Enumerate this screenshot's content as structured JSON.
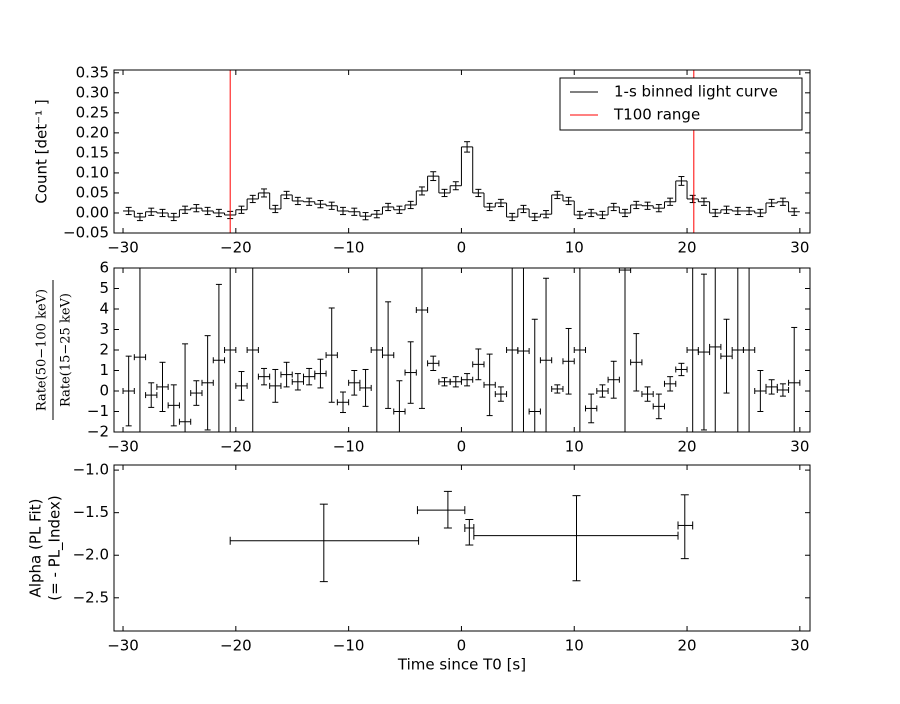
{
  "chart_data": [
    {
      "type": "step",
      "ylabel": "Count [det⁻¹ ]",
      "xlim": [
        -30.8,
        30.9
      ],
      "ylim": [
        -0.05,
        0.357
      ],
      "xticks": [
        {
          "value": -30,
          "label": "−30"
        },
        {
          "value": -20,
          "label": "−20"
        },
        {
          "value": -10,
          "label": "−10"
        },
        0,
        10,
        20,
        30
      ],
      "yticks": [
        {
          "value": -0.05,
          "label": "−0.05"
        },
        {
          "value": 0,
          "label": "0.00"
        },
        {
          "value": 0.05,
          "label": "0.05"
        },
        {
          "value": 0.1,
          "label": "0.10"
        },
        {
          "value": 0.15,
          "label": "0.15"
        },
        {
          "value": 0.2,
          "label": "0.20"
        },
        {
          "value": 0.25,
          "label": "0.25"
        },
        {
          "value": 0.3,
          "label": "0.30"
        },
        {
          "value": 0.35,
          "label": "0.35"
        }
      ],
      "legend": "upper right",
      "series": [
        {
          "name": "1-s binned light curve",
          "color": "#000000",
          "bins": [
            -30,
            -29,
            -28,
            -27,
            -26,
            -25,
            -24,
            -23,
            -22,
            -21,
            -20,
            -19,
            -18,
            -17,
            -16,
            -15,
            -14,
            -13,
            -12,
            -11,
            -10,
            -9,
            -8,
            -7,
            -6,
            -5,
            -4,
            -3,
            -2,
            -1,
            0,
            1,
            2,
            3,
            4,
            5,
            6,
            7,
            8,
            9,
            10,
            11,
            12,
            13,
            14,
            15,
            16,
            17,
            18,
            19,
            20,
            21,
            22,
            23,
            24,
            25,
            26,
            27,
            28,
            29,
            30
          ],
          "values": [
            0.005,
            -0.01,
            0.003,
            0.0,
            -0.01,
            0.008,
            0.012,
            0.005,
            0.0,
            -0.005,
            0.008,
            0.035,
            0.05,
            0.01,
            0.045,
            0.03,
            0.028,
            0.022,
            0.018,
            0.005,
            0.003,
            -0.008,
            -0.003,
            0.015,
            0.008,
            0.02,
            0.055,
            0.092,
            0.05,
            0.068,
            0.165,
            0.05,
            0.015,
            0.025,
            -0.01,
            0.01,
            -0.01,
            -0.003,
            0.045,
            0.03,
            -0.005,
            0.0,
            -0.005,
            0.015,
            0.0,
            0.02,
            0.018,
            0.012,
            0.028,
            0.08,
            0.035,
            0.028,
            0.0,
            0.008,
            0.005,
            0.005,
            0.0,
            0.025,
            0.028,
            0.003
          ],
          "errors": [
            0.009,
            0.009,
            0.009,
            0.009,
            0.009,
            0.009,
            0.009,
            0.009,
            0.009,
            0.009,
            0.009,
            0.009,
            0.01,
            0.009,
            0.009,
            0.009,
            0.009,
            0.009,
            0.009,
            0.009,
            0.009,
            0.009,
            0.009,
            0.009,
            0.009,
            0.009,
            0.01,
            0.011,
            0.009,
            0.01,
            0.013,
            0.009,
            0.009,
            0.009,
            0.009,
            0.009,
            0.009,
            0.009,
            0.009,
            0.009,
            0.009,
            0.009,
            0.009,
            0.009,
            0.009,
            0.009,
            0.009,
            0.009,
            0.009,
            0.011,
            0.009,
            0.009,
            0.009,
            0.009,
            0.009,
            0.009,
            0.009,
            0.009,
            0.009,
            0.009
          ]
        },
        {
          "name": "T100 range",
          "color": "#ff0000",
          "x": [
            -20.5,
            20.6
          ]
        }
      ]
    },
    {
      "type": "errorbar",
      "ylabel": [
        "Rate(50−100 keV)",
        "Rate(15−25 keV)"
      ],
      "xlim": [
        -30.8,
        30.9
      ],
      "ylim": [
        -2,
        6
      ],
      "xticks": [
        {
          "value": -30,
          "label": "−30"
        },
        {
          "value": -20,
          "label": "−20"
        },
        {
          "value": -10,
          "label": "−10"
        },
        0,
        10,
        20,
        30
      ],
      "yticks": [
        {
          "value": -2,
          "label": "−2"
        },
        {
          "value": -1,
          "label": "−1"
        },
        0,
        1,
        2,
        3,
        4,
        5,
        6
      ],
      "color": "#000000",
      "x_error": 0.5,
      "x": [
        -29.5,
        -28.5,
        -27.5,
        -26.5,
        -25.5,
        -24.5,
        -23.5,
        -22.5,
        -21.5,
        -20.5,
        -19.5,
        -18.5,
        -17.5,
        -16.5,
        -15.5,
        -14.5,
        -13.5,
        -12.5,
        -11.5,
        -10.5,
        -9.5,
        -8.5,
        -7.5,
        -6.5,
        -5.5,
        -4.5,
        -3.5,
        -2.5,
        -1.5,
        -0.5,
        0.5,
        1.5,
        2.5,
        3.5,
        4.5,
        5.5,
        6.5,
        7.5,
        8.5,
        9.5,
        10.5,
        11.5,
        12.5,
        13.5,
        14.5,
        15.5,
        16.5,
        17.5,
        18.5,
        19.5,
        20.5,
        21.5,
        22.5,
        23.5,
        24.5,
        25.5,
        26.5,
        27.5,
        28.5,
        29.5
      ],
      "values": [
        0,
        1.65,
        -0.2,
        0.2,
        -0.7,
        -1.5,
        -0.1,
        0.4,
        1.5,
        2,
        0.25,
        2,
        0.7,
        0.25,
        0.8,
        0.45,
        0.7,
        0.85,
        1.75,
        -0.55,
        0.4,
        0.15,
        2,
        1.75,
        -1.0,
        0.9,
        3.95,
        1.35,
        0.45,
        0.45,
        0.55,
        1.3,
        0.3,
        -0.15,
        2,
        1.95,
        -1.0,
        1.5,
        0.1,
        1.45,
        2,
        -0.85,
        0.0,
        0.55,
        5.9,
        1.4,
        -0.15,
        -0.75,
        0.35,
        1.05,
        2,
        1.9,
        2.15,
        1.7,
        2,
        2,
        0,
        0.2,
        0.05,
        0.4
      ],
      "errors": [
        1.7,
        10,
        0.6,
        1.2,
        1.0,
        3.8,
        0.6,
        2.3,
        3.7,
        10,
        0.7,
        10,
        0.4,
        0.8,
        0.6,
        0.4,
        0.4,
        0.7,
        2.3,
        0.5,
        0.6,
        0.9,
        10,
        2.6,
        1.5,
        1.5,
        4.8,
        0.35,
        0.2,
        0.25,
        0.3,
        0.75,
        1.5,
        0.35,
        10,
        10,
        4.5,
        4,
        0.2,
        1.6,
        10,
        0.7,
        0.3,
        0.9,
        8,
        1.4,
        0.35,
        0.6,
        0.35,
        0.3,
        10,
        3.8,
        10,
        1.8,
        10,
        10,
        1.0,
        0.35,
        0.3,
        2.7
      ]
    },
    {
      "type": "errorbar_range",
      "ylabel": [
        "Alpha (PL Fit)",
        "(= - PL_Index)"
      ],
      "xlabel": "Time since T0 [s]",
      "xlim": [
        -30.8,
        30.9
      ],
      "ylim": [
        -2.89,
        -0.94
      ],
      "xticks": [
        {
          "value": -30,
          "label": "−30"
        },
        {
          "value": -20,
          "label": "−20"
        },
        {
          "value": -10,
          "label": "−10"
        },
        0,
        10,
        20,
        30
      ],
      "yticks": [
        {
          "value": -2.5,
          "label": "−2.5"
        },
        {
          "value": -2.0,
          "label": "−2.0"
        },
        {
          "value": -1.5,
          "label": "−1.5"
        },
        {
          "value": -1.0,
          "label": "−1.0"
        }
      ],
      "color": "#000000",
      "x": [
        -12.2,
        -1.2,
        0.7,
        10.2,
        19.8
      ],
      "xmin": [
        -20.5,
        -3.9,
        0.3,
        1.1,
        19.2
      ],
      "xmax": [
        -3.8,
        0.3,
        1.1,
        19.2,
        20.5
      ],
      "values": [
        -1.83,
        -1.47,
        -1.68,
        -1.77,
        -1.65
      ],
      "ymin": [
        -2.31,
        -1.68,
        -1.88,
        -2.3,
        -2.04
      ],
      "ymax": [
        -1.4,
        -1.25,
        -1.58,
        -1.3,
        -1.29
      ]
    }
  ]
}
